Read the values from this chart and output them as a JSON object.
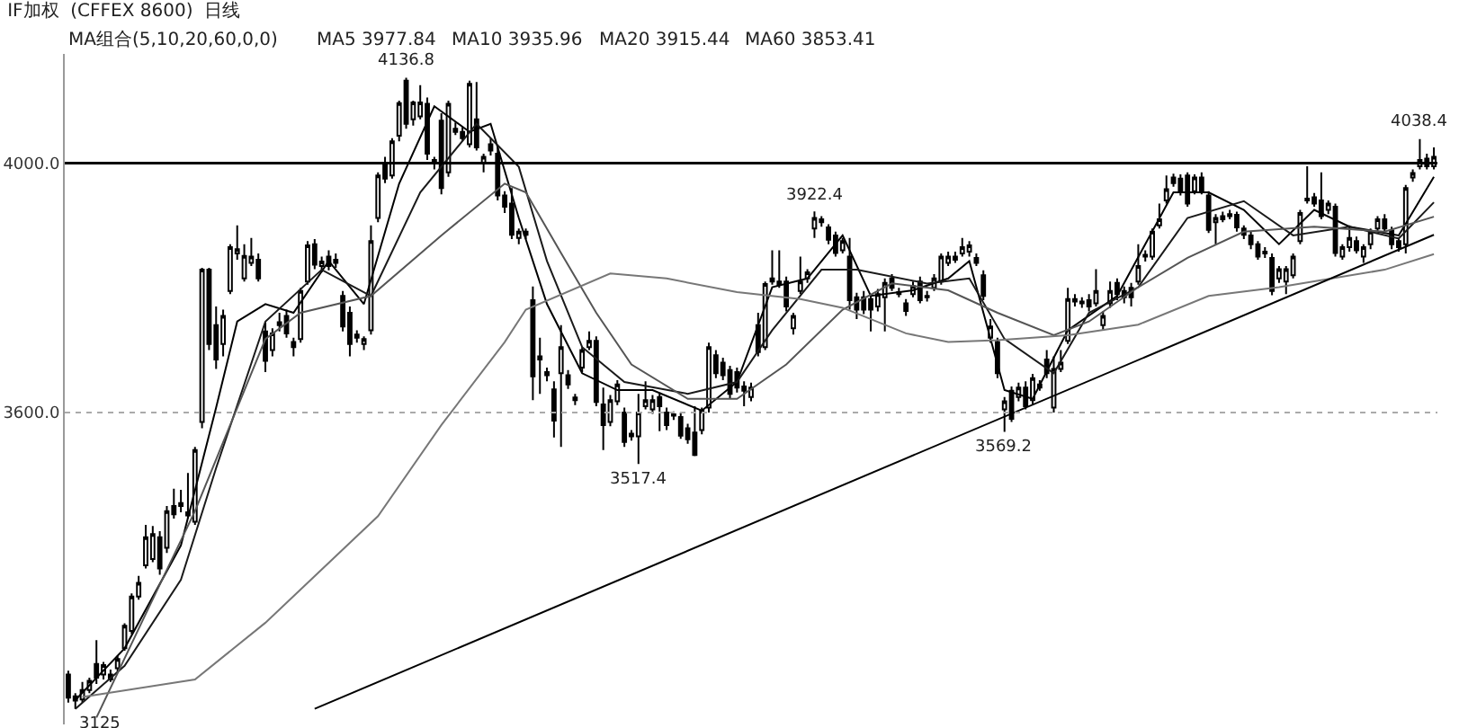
{
  "chart_data": {
    "type": "candlestick",
    "title": "IF加权  (CFFEX 8600)  日线",
    "categories": [
      null,
      null,
      null,
      null,
      null,
      null,
      null,
      null,
      null,
      null,
      null,
      null,
      null,
      null,
      null,
      null,
      null,
      null,
      null,
      null,
      null,
      null,
      null,
      null,
      null,
      null,
      null,
      null,
      null,
      null,
      null,
      null,
      null,
      null,
      null,
      null,
      null,
      null,
      null,
      null,
      null,
      null,
      null,
      null,
      null,
      null,
      null,
      null,
      null,
      null,
      null,
      null,
      null,
      null,
      null,
      null,
      null,
      null,
      null,
      null,
      null,
      null,
      null,
      null,
      null,
      null,
      null,
      null,
      null,
      null,
      null,
      null,
      null,
      null,
      null,
      null,
      null,
      null,
      null,
      null,
      null,
      null,
      null,
      null,
      null,
      null,
      null,
      null,
      null,
      null,
      null,
      null,
      null,
      null,
      null,
      null,
      null,
      null,
      null,
      null,
      null,
      null,
      null,
      null,
      null,
      null,
      null,
      null,
      null,
      null,
      null,
      null,
      null,
      null,
      null,
      null,
      null,
      null,
      null,
      null,
      null,
      null,
      null,
      null,
      null,
      null,
      null,
      null,
      null,
      null,
      null,
      null,
      null,
      null,
      null,
      null,
      null,
      null,
      null,
      null,
      null,
      null,
      null,
      null,
      null,
      null,
      null,
      null,
      null,
      null,
      null,
      null,
      null,
      null,
      null,
      null,
      null,
      null,
      null,
      null,
      null,
      null,
      null,
      null,
      null,
      null,
      null,
      null,
      null,
      null,
      null,
      null,
      null,
      null,
      null,
      null,
      null,
      null,
      null,
      null,
      null,
      null,
      null,
      null,
      null,
      null,
      null,
      null,
      null,
      null,
      null,
      null,
      null,
      null,
      null
    ],
    "color": "#000000",
    "ohlc": [
      [
        3180,
        3186,
        3135,
        3143
      ],
      [
        3145,
        3150,
        3125,
        3138
      ],
      [
        3140,
        3168,
        3135,
        3155
      ],
      [
        3155,
        3175,
        3150,
        3170
      ],
      [
        3197,
        3235,
        3165,
        3175
      ],
      [
        3180,
        3200,
        3172,
        3195
      ],
      [
        3180,
        3188,
        3168,
        3172
      ],
      [
        3190,
        3210,
        3185,
        3205
      ],
      [
        3222,
        3262,
        3218,
        3258
      ],
      [
        3250,
        3310,
        3245,
        3305
      ],
      [
        3305,
        3338,
        3300,
        3327
      ],
      [
        3355,
        3420,
        3350,
        3400
      ],
      [
        3365,
        3418,
        3360,
        3405
      ],
      [
        3400,
        3410,
        3340,
        3350
      ],
      [
        3383,
        3450,
        3375,
        3442
      ],
      [
        3450,
        3478,
        3430,
        3437
      ],
      [
        3450,
        3476,
        3440,
        3455
      ],
      [
        3435,
        3503,
        3430,
        3440
      ],
      [
        3425,
        3545,
        3420,
        3540
      ],
      [
        3585,
        3832,
        3575,
        3829
      ],
      [
        3829,
        3832,
        3700,
        3710
      ],
      [
        3740,
        3770,
        3670,
        3685
      ],
      [
        3710,
        3765,
        3690,
        3755
      ],
      [
        3795,
        3870,
        3790,
        3865
      ],
      [
        3855,
        3900,
        3845,
        3862
      ],
      [
        3815,
        3870,
        3810,
        3851
      ],
      [
        3840,
        3880,
        3835,
        3850
      ],
      [
        3845,
        3855,
        3810,
        3815
      ],
      [
        3730,
        3745,
        3665,
        3683
      ],
      [
        3700,
        3735,
        3690,
        3727
      ],
      [
        3740,
        3760,
        3730,
        3745
      ],
      [
        3755,
        3765,
        3720,
        3727
      ],
      [
        3713,
        3720,
        3690,
        3705
      ],
      [
        3718,
        3800,
        3712,
        3795
      ],
      [
        3810,
        3875,
        3805,
        3868
      ],
      [
        3870,
        3878,
        3830,
        3837
      ],
      [
        3835,
        3850,
        3825,
        3842
      ],
      [
        3850,
        3860,
        3828,
        3835
      ],
      [
        3840,
        3855,
        3832,
        3845
      ],
      [
        3787,
        3795,
        3730,
        3738
      ],
      [
        3760,
        3770,
        3690,
        3710
      ],
      [
        3720,
        3732,
        3712,
        3725
      ],
      [
        3710,
        3722,
        3700,
        3718
      ],
      [
        3732,
        3900,
        3725,
        3875
      ],
      [
        3912,
        3985,
        3905,
        3980
      ],
      [
        4000,
        4010,
        3968,
        3975
      ],
      [
        3980,
        4040,
        3975,
        4035
      ],
      [
        4044,
        4100,
        4035,
        4096
      ],
      [
        4132,
        4136.8,
        4055,
        4063
      ],
      [
        4070,
        4100,
        4060,
        4097
      ],
      [
        4075,
        4125,
        4070,
        4097
      ],
      [
        4095,
        4105,
        4005,
        4015
      ],
      [
        4000,
        4010,
        3990,
        4005
      ],
      [
        4068,
        4080,
        3950,
        3960
      ],
      [
        3985,
        4100,
        3978,
        4095
      ],
      [
        4055,
        4065,
        4045,
        4050
      ],
      [
        4050,
        4058,
        4035,
        4040
      ],
      [
        4030,
        4132,
        4025,
        4127
      ],
      [
        4070,
        4130,
        4020,
        4025
      ],
      [
        4000,
        4015,
        3985,
        4010
      ],
      [
        4030,
        4040,
        4012,
        4020
      ],
      [
        4015,
        4025,
        3940,
        3948
      ],
      [
        3948,
        3955,
        3920,
        3930
      ],
      [
        3935,
        3960,
        3878,
        3885
      ],
      [
        3880,
        3895,
        3870,
        3890
      ],
      [
        3885,
        3895,
        3878,
        3890
      ],
      [
        3780,
        3802,
        3620,
        3658
      ],
      [
        3685,
        3720,
        3630,
        3690
      ],
      [
        3660,
        3672,
        3650,
        3665
      ],
      [
        3637,
        3650,
        3560,
        3587
      ],
      [
        3663,
        3740,
        3545,
        3705
      ],
      [
        3660,
        3668,
        3638,
        3645
      ],
      [
        3620,
        3630,
        3612,
        3624
      ],
      [
        3672,
        3705,
        3665,
        3700
      ],
      [
        3705,
        3730,
        3700,
        3715
      ],
      [
        3715,
        3722,
        3610,
        3617
      ],
      [
        3613,
        3640,
        3540,
        3580
      ],
      [
        3585,
        3628,
        3578,
        3620
      ],
      [
        3618,
        3652,
        3612,
        3645
      ],
      [
        3600,
        3608,
        3545,
        3553
      ],
      [
        3562,
        3572,
        3555,
        3566
      ],
      [
        3562,
        3630,
        3517.4,
        3600
      ],
      [
        3610,
        3650,
        3605,
        3620
      ],
      [
        3605,
        3628,
        3598,
        3620
      ],
      [
        3625,
        3632,
        3570,
        3610
      ],
      [
        3600,
        3608,
        3572,
        3580
      ],
      [
        3595,
        3602,
        3588,
        3597
      ],
      [
        3593,
        3600,
        3558,
        3563
      ],
      [
        3575,
        3582,
        3550,
        3557
      ],
      [
        3568,
        3610,
        3530,
        3532
      ],
      [
        3572,
        3608,
        3565,
        3603
      ],
      [
        3608,
        3712,
        3600,
        3705
      ],
      [
        3692,
        3700,
        3655,
        3663
      ],
      [
        3680,
        3688,
        3652,
        3660
      ],
      [
        3668,
        3675,
        3622,
        3630
      ],
      [
        3665,
        3672,
        3632,
        3640
      ],
      [
        3642,
        3650,
        3610,
        3635
      ],
      [
        3625,
        3648,
        3618,
        3640
      ],
      [
        3740,
        3760,
        3690,
        3697
      ],
      [
        3705,
        3810,
        3700,
        3806
      ],
      [
        3815,
        3860,
        3805,
        3810
      ],
      [
        3810,
        3860,
        3800,
        3805
      ],
      [
        3810,
        3818,
        3762,
        3770
      ],
      [
        3735,
        3760,
        3725,
        3755
      ],
      [
        3795,
        3850,
        3790,
        3810
      ],
      [
        3815,
        3830,
        3808,
        3825
      ],
      [
        3895,
        3922.4,
        3880,
        3912
      ],
      [
        3905,
        3915,
        3898,
        3910
      ],
      [
        3897,
        3902,
        3870,
        3877
      ],
      [
        3884,
        3890,
        3850,
        3856
      ],
      [
        3860,
        3880,
        3855,
        3875
      ],
      [
        3850,
        3880,
        3765,
        3780
      ],
      [
        3785,
        3792,
        3750,
        3765
      ],
      [
        3785,
        3795,
        3758,
        3765
      ],
      [
        3782,
        3790,
        3730,
        3765
      ],
      [
        3770,
        3798,
        3762,
        3790
      ],
      [
        3785,
        3815,
        3730,
        3808
      ],
      [
        3815,
        3822,
        3795,
        3800
      ],
      [
        3790,
        3800,
        3785,
        3793
      ],
      [
        3775,
        3782,
        3755,
        3763
      ],
      [
        3790,
        3810,
        3785,
        3803
      ],
      [
        3810,
        3818,
        3775,
        3780
      ],
      [
        3785,
        3795,
        3778,
        3787
      ],
      [
        3800,
        3822,
        3795,
        3815
      ],
      [
        3810,
        3855,
        3805,
        3850
      ],
      [
        3840,
        3858,
        3835,
        3850
      ],
      [
        3850,
        3858,
        3840,
        3845
      ],
      [
        3855,
        3880,
        3850,
        3865
      ],
      [
        3858,
        3875,
        3850,
        3868
      ],
      [
        3848,
        3855,
        3835,
        3840
      ],
      [
        3820,
        3828,
        3780,
        3787
      ],
      [
        3720,
        3750,
        3712,
        3738
      ],
      [
        3713,
        3720,
        3655,
        3663
      ],
      [
        3605,
        3625,
        3569.2,
        3618
      ],
      [
        3635,
        3642,
        3585,
        3590
      ],
      [
        3625,
        3648,
        3618,
        3640
      ],
      [
        3640,
        3650,
        3605,
        3610
      ],
      [
        3620,
        3662,
        3612,
        3655
      ],
      [
        3640,
        3652,
        3635,
        3645
      ],
      [
        3685,
        3700,
        3655,
        3663
      ],
      [
        3608,
        3690,
        3600,
        3670
      ],
      [
        3670,
        3700,
        3665,
        3680
      ],
      [
        3715,
        3800,
        3710,
        3782
      ],
      [
        3778,
        3790,
        3770,
        3782
      ],
      [
        3775,
        3785,
        3768,
        3778
      ],
      [
        3780,
        3790,
        3762,
        3770
      ],
      [
        3775,
        3830,
        3770,
        3795
      ],
      [
        3740,
        3762,
        3732,
        3755
      ],
      [
        3775,
        3810,
        3768,
        3795
      ],
      [
        3808,
        3815,
        3780,
        3790
      ],
      [
        3795,
        3802,
        3775,
        3785
      ],
      [
        3800,
        3808,
        3770,
        3785
      ],
      [
        3810,
        3870,
        3805,
        3835
      ],
      [
        3850,
        3860,
        3842,
        3853
      ],
      [
        3850,
        3895,
        3845,
        3890
      ],
      [
        3900,
        3935,
        3895,
        3910
      ],
      [
        3940,
        3980,
        3935,
        3958
      ],
      [
        3977,
        3983,
        3962,
        3968
      ],
      [
        3975,
        3982,
        3948,
        3955
      ],
      [
        3980,
        3985,
        3930,
        3935
      ],
      [
        3955,
        3982,
        3950,
        3977
      ],
      [
        3977,
        3985,
        3950,
        3955
      ],
      [
        3948,
        3955,
        3888,
        3893
      ],
      [
        3905,
        3918,
        3870,
        3912
      ],
      [
        3910,
        3922,
        3905,
        3915
      ],
      [
        3918,
        3925,
        3910,
        3915
      ],
      [
        3917,
        3922,
        3890,
        3897
      ],
      [
        3895,
        3900,
        3878,
        3885
      ],
      [
        3884,
        3890,
        3862,
        3870
      ],
      [
        3870,
        3875,
        3845,
        3850
      ],
      [
        3855,
        3865,
        3848,
        3858
      ],
      [
        3848,
        3855,
        3788,
        3795
      ],
      [
        3815,
        3835,
        3808,
        3830
      ],
      [
        3810,
        3835,
        3790,
        3830
      ],
      [
        3820,
        3855,
        3815,
        3850
      ],
      [
        3875,
        3925,
        3870,
        3920
      ],
      [
        3940,
        3995,
        3935,
        3943
      ],
      [
        3945,
        3952,
        3930,
        3935
      ],
      [
        3940,
        3985,
        3910,
        3915
      ],
      [
        3925,
        3940,
        3918,
        3935
      ],
      [
        3930,
        3935,
        3850,
        3856
      ],
      [
        3850,
        3870,
        3845,
        3865
      ],
      [
        3865,
        3900,
        3858,
        3880
      ],
      [
        3875,
        3882,
        3855,
        3860
      ],
      [
        3850,
        3870,
        3840,
        3865
      ],
      [
        3870,
        3895,
        3862,
        3890
      ],
      [
        3895,
        3915,
        3890,
        3910
      ],
      [
        3910,
        3918,
        3890,
        3895
      ],
      [
        3892,
        3898,
        3862,
        3870
      ],
      [
        3875,
        3880,
        3858,
        3865
      ],
      [
        3870,
        3965,
        3855,
        3960
      ],
      [
        3977,
        3990,
        3970,
        3984
      ],
      [
        3995,
        4038.4,
        3990,
        4005
      ],
      [
        4007,
        4015,
        3990,
        3995
      ],
      [
        3995,
        4025,
        3990,
        4010
      ]
    ],
    "series": [
      {
        "type": "line",
        "color": "#000000",
        "values": [
          null,
          3139,
          null,
          null,
          null,
          null,
          null,
          null,
          3222,
          null,
          null,
          null,
          null,
          null,
          null,
          null,
          3387,
          null,
          null,
          null,
          null,
          3608,
          null,
          null,
          3746,
          null,
          null,
          null,
          3774,
          null,
          null,
          null,
          3760,
          null,
          null,
          null,
          null,
          3843,
          null,
          null,
          null,
          null,
          3774,
          null,
          null,
          null,
          null,
          3967,
          null,
          null,
          null,
          null,
          4091,
          null,
          null,
          null,
          null,
          4050,
          null,
          null,
          4063,
          null,
          null,
          null,
          3912,
          null,
          null,
          null,
          3774,
          null,
          null,
          null,
          null,
          3663,
          null,
          null,
          null,
          null,
          3636,
          null,
          null,
          null,
          null,
          3636,
          null,
          null,
          null,
          null,
          null,
          null,
          3603,
          null,
          null,
          null,
          null,
          3649,
          null,
          null,
          null,
          null,
          3801,
          null,
          null,
          null,
          null,
          3815,
          null,
          null,
          null,
          null,
          3884,
          null,
          null,
          null,
          3787,
          null,
          null,
          null,
          null,
          null,
          3796,
          null,
          null,
          null,
          null,
          3815,
          null,
          null,
          3843,
          null,
          null,
          null,
          null,
          3636,
          null,
          null,
          null,
          3622,
          null,
          null,
          null,
          null,
          3732,
          null,
          null,
          null,
          null,
          null,
          null,
          3787,
          null,
          null,
          null,
          null,
          null,
          null,
          null,
          3953,
          null,
          null,
          null,
          null,
          3953,
          null,
          null,
          null,
          null,
          3925,
          null,
          null,
          null,
          null,
          3870,
          null,
          null,
          null,
          null,
          3925,
          null,
          null,
          null,
          null,
          3898,
          null,
          null,
          null,
          null,
          null,
          null,
          3884,
          null,
          null,
          null,
          null,
          3978
        ]
      },
      {
        "type": "line",
        "color": "#1a1a1a",
        "values": [
          null,
          3125,
          null,
          null,
          null,
          null,
          null,
          null,
          3194,
          null,
          null,
          null,
          null,
          null,
          null,
          null,
          3332,
          null,
          null,
          null,
          null,
          3511,
          null,
          null,
          null,
          null,
          null,
          null,
          3746,
          null,
          null,
          null,
          null,
          null,
          null,
          null,
          3829,
          null,
          null,
          null,
          null,
          null,
          null,
          3787,
          null,
          null,
          null,
          null,
          null,
          null,
          3953,
          null,
          null,
          null,
          null,
          null,
          null,
          null,
          4063,
          null,
          null,
          null,
          null,
          null,
          3994,
          null,
          null,
          null,
          3843,
          null,
          null,
          null,
          null,
          3705,
          null,
          null,
          null,
          null,
          null,
          3649,
          null,
          null,
          null,
          null,
          null,
          null,
          null,
          null,
          3630,
          null,
          null,
          null,
          null,
          null,
          null,
          3649,
          null,
          null,
          null,
          null,
          3732,
          null,
          null,
          null,
          null,
          null,
          null,
          3829,
          null,
          null,
          null,
          null,
          3829,
          null,
          null,
          null,
          null,
          null,
          null,
          null,
          null,
          null,
          3807,
          null,
          null,
          null,
          null,
          null,
          3815,
          null,
          null,
          null,
          null,
          3718,
          null,
          null,
          null,
          null,
          null,
          null,
          3663,
          null,
          null,
          null,
          null,
          3760,
          null,
          null,
          null,
          null,
          null,
          null,
          3801,
          null,
          null,
          null,
          null,
          null,
          null,
          3912,
          null,
          null,
          null,
          null,
          null,
          null,
          null,
          3939,
          null,
          null,
          null,
          null,
          null,
          null,
          3884,
          null,
          null,
          null,
          null,
          null,
          null,
          null,
          3898,
          null,
          null,
          null,
          null,
          null,
          null,
          3879,
          null,
          null,
          null,
          null,
          3937
        ]
      },
      {
        "type": "line",
        "color": "#555555",
        "values": [
          null,
          null,
          null,
          null,
          3111,
          null,
          null,
          null,
          null,
          null,
          null,
          3277,
          null,
          null,
          null,
          null,
          null,
          null,
          3442,
          null,
          null,
          null,
          null,
          null,
          null,
          null,
          null,
          null,
          3718,
          null,
          null,
          null,
          null,
          3760,
          null,
          null,
          null,
          null,
          null,
          null,
          null,
          null,
          null,
          3787,
          null,
          null,
          null,
          null,
          null,
          null,
          null,
          null,
          null,
          3884,
          null,
          null,
          null,
          null,
          null,
          null,
          null,
          null,
          3967,
          null,
          null,
          3953,
          null,
          null,
          null,
          null,
          3856,
          null,
          null,
          null,
          null,
          3760,
          null,
          null,
          null,
          null,
          3677,
          null,
          null,
          null,
          null,
          null,
          null,
          null,
          3622,
          null,
          null,
          null,
          null,
          null,
          null,
          3622,
          null,
          null,
          null,
          null,
          null,
          null,
          3677,
          null,
          null,
          null,
          null,
          null,
          null,
          null,
          3765,
          null,
          null,
          null,
          null,
          null,
          null,
          3807,
          null,
          null,
          null,
          null,
          null,
          null,
          null,
          3796,
          null,
          null,
          null,
          null,
          null,
          null,
          3760,
          null,
          null,
          null,
          null,
          null,
          null,
          null,
          3724,
          null,
          null,
          null,
          null,
          3746,
          null,
          null,
          null,
          null,
          null,
          null,
          3801,
          null,
          null,
          null,
          null,
          null,
          null,
          3848,
          null,
          null,
          null,
          null,
          null,
          null,
          null,
          3890,
          null,
          null,
          null,
          null,
          null,
          null,
          null,
          null,
          null,
          3898,
          null,
          null,
          null,
          null,
          null,
          null,
          null,
          null,
          null,
          3890,
          null,
          null,
          null,
          null,
          null,
          null,
          3914
        ]
      },
      {
        "type": "line",
        "color": "#777777",
        "values": [
          null,
          null,
          3144,
          null,
          null,
          null,
          null,
          null,
          null,
          null,
          null,
          null,
          null,
          null,
          null,
          null,
          null,
          null,
          3172,
          null,
          null,
          null,
          null,
          null,
          null,
          null,
          null,
          null,
          3263,
          null,
          null,
          null,
          null,
          null,
          null,
          null,
          null,
          null,
          null,
          null,
          null,
          null,
          null,
          null,
          3434,
          null,
          null,
          null,
          null,
          null,
          null,
          null,
          null,
          3580,
          null,
          null,
          null,
          null,
          null,
          null,
          null,
          null,
          3713,
          null,
          null,
          3765,
          null,
          null,
          null,
          null,
          null,
          null,
          null,
          null,
          null,
          null,
          null,
          3823,
          null,
          null,
          null,
          null,
          null,
          null,
          null,
          3815,
          null,
          null,
          null,
          null,
          null,
          null,
          null,
          null,
          null,
          3793,
          null,
          null,
          null,
          null,
          null,
          null,
          null,
          null,
          3782,
          null,
          null,
          null,
          null,
          null,
          3768,
          null,
          null,
          null,
          null,
          null,
          null,
          null,
          null,
          3727,
          null,
          null,
          null,
          null,
          null,
          3713,
          null,
          null,
          null,
          null,
          null,
          null,
          3716,
          null,
          null,
          null,
          null,
          null,
          null,
          null,
          null,
          null,
          3724,
          null,
          null,
          null,
          null,
          null,
          null,
          null,
          null,
          null,
          3741,
          null,
          null,
          null,
          null,
          null,
          null,
          null,
          null,
          null,
          3787,
          null,
          null,
          null,
          null,
          null,
          null,
          null,
          null,
          null,
          3801,
          null,
          null,
          null,
          null,
          null,
          null,
          null,
          null,
          null,
          null,
          null,
          null,
          null,
          null,
          3829,
          null,
          null,
          null,
          null,
          null,
          null,
          3854
        ]
      },
      {
        "type": "line",
        "color": "#000000",
        "values": [
          null,
          null,
          null,
          null,
          null,
          null,
          null,
          null,
          null,
          null,
          null,
          null,
          null,
          null,
          null,
          null,
          null,
          null,
          null,
          null,
          null,
          null,
          null,
          null,
          null,
          null,
          null,
          null,
          null,
          null,
          null,
          null,
          null,
          null,
          null,
          3125,
          null,
          null,
          null,
          null,
          null,
          null,
          null,
          null,
          null,
          null,
          null,
          null,
          null,
          null,
          null,
          null,
          null,
          null,
          null,
          null,
          null,
          null,
          null,
          null,
          null,
          null,
          null,
          null,
          null,
          null,
          null,
          null,
          null,
          null,
          null,
          null,
          null,
          null,
          null,
          null,
          null,
          null,
          null,
          null,
          null,
          null,
          null,
          null,
          null,
          null,
          null,
          null,
          null,
          null,
          null,
          null,
          null,
          null,
          null,
          null,
          null,
          null,
          null,
          null,
          null,
          null,
          null,
          null,
          null,
          null,
          null,
          null,
          null,
          null,
          null,
          null,
          null,
          null,
          null,
          null,
          null,
          null,
          null,
          null,
          null,
          null,
          null,
          null,
          null,
          null,
          null,
          null,
          null,
          null,
          null,
          null,
          null,
          null,
          null,
          null,
          null,
          null,
          null,
          null,
          null,
          null,
          null,
          null,
          null,
          null,
          null,
          null,
          null,
          null,
          null,
          null,
          null,
          null,
          null,
          null,
          null,
          null,
          null,
          null,
          null,
          null,
          null,
          null,
          null,
          null,
          null,
          null,
          null,
          null,
          null,
          null,
          null,
          null,
          null,
          null,
          null,
          null,
          null,
          null,
          null,
          null,
          null,
          null,
          null,
          null,
          null,
          null,
          null,
          null,
          null,
          null,
          null,
          null,
          3885
        ]
      }
    ],
    "ylim": [
      3100,
      4175
    ],
    "yticks": [
      {
        "value": 4000,
        "label": "4000.0"
      },
      {
        "value": 3600,
        "label": "3600.0"
      }
    ],
    "ref_lines": [
      {
        "axis": "y",
        "value": 4000,
        "color": "#000000"
      },
      {
        "axis": "y",
        "value": 3600,
        "color": "#aaaaaa",
        "line_style": "dotted"
      }
    ],
    "annotations": [
      "MA组合(5,10,20,60,0,0)",
      "MA5 3977.84",
      "MA10 3935.96",
      "MA20 3915.44",
      "MA60 3853.41",
      {
        "text": "4136.8",
        "y": 4136.8
      },
      {
        "text": "3922.4",
        "y": 3922.4
      },
      {
        "text": "4038.4",
        "y": 4038.4
      },
      {
        "text": "3517.4",
        "y": 3517.4
      },
      {
        "text": "3569.2",
        "y": 3569.2
      },
      {
        "text": "3125",
        "y": 3125
      }
    ]
  }
}
